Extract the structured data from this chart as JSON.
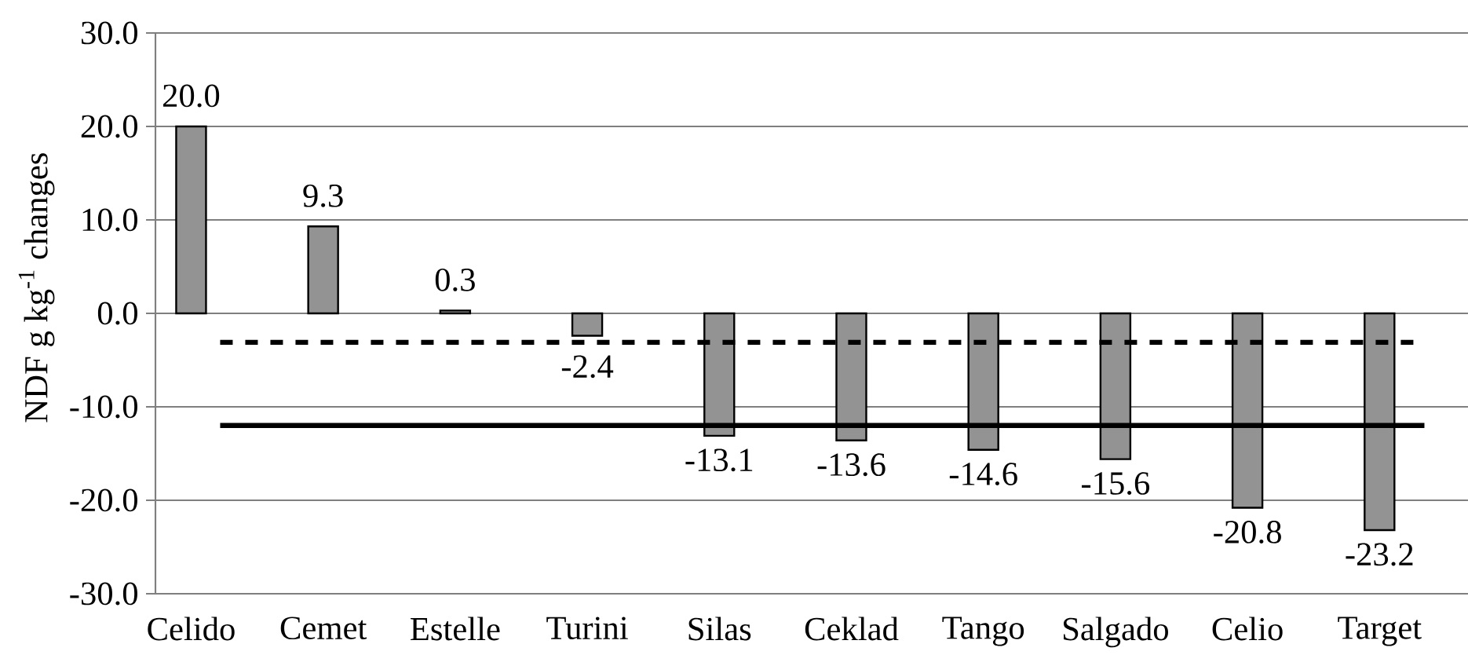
{
  "chart_data": {
    "type": "bar",
    "ylabel": "NDF g kg$^{-1}$ changes",
    "categories": [
      "Celido",
      "Cemet",
      "Estelle",
      "Turini",
      "Silas",
      "Ceklad",
      "Tango",
      "Salgado",
      "Celio",
      "Target"
    ],
    "values": [
      20.0,
      9.3,
      0.3,
      -2.4,
      -13.1,
      -13.6,
      -14.6,
      -15.6,
      -20.8,
      -23.2
    ],
    "value_labels": [
      "20.0",
      "9.3",
      "0.3",
      "-2.4",
      "-13.1",
      "-13.6",
      "-14.6",
      "-15.6",
      "-20.8",
      "-23.2"
    ],
    "color": "#939393",
    "ylim": [
      -30,
      30
    ],
    "yticks": [
      {
        "value": -30,
        "label": "-30.0"
      },
      {
        "value": -20,
        "label": "-20.0"
      },
      {
        "value": -10,
        "label": "-10.0"
      },
      {
        "value": 0,
        "label": "0.0"
      },
      {
        "value": 10,
        "label": "10.0"
      },
      {
        "value": 20,
        "label": "20.0"
      },
      {
        "value": 30,
        "label": "30.0"
      }
    ],
    "grid": "y",
    "ref_lines": [
      {
        "axis": "y",
        "value": -3.1,
        "line_style": "dashed",
        "color": "#000000"
      },
      {
        "axis": "y",
        "value": -12.0,
        "line_style": "solid",
        "color": "#000000"
      }
    ]
  }
}
